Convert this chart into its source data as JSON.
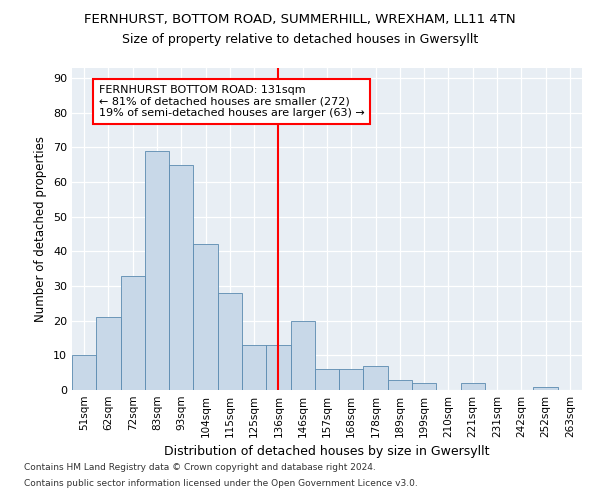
{
  "title1": "FERNHURST, BOTTOM ROAD, SUMMERHILL, WREXHAM, LL11 4TN",
  "title2": "Size of property relative to detached houses in Gwersyllt",
  "xlabel": "Distribution of detached houses by size in Gwersyllt",
  "ylabel": "Number of detached properties",
  "footnote1": "Contains HM Land Registry data © Crown copyright and database right 2024.",
  "footnote2": "Contains public sector information licensed under the Open Government Licence v3.0.",
  "categories": [
    "51sqm",
    "62sqm",
    "72sqm",
    "83sqm",
    "93sqm",
    "104sqm",
    "115sqm",
    "125sqm",
    "136sqm",
    "146sqm",
    "157sqm",
    "168sqm",
    "178sqm",
    "189sqm",
    "199sqm",
    "210sqm",
    "221sqm",
    "231sqm",
    "242sqm",
    "252sqm",
    "263sqm"
  ],
  "values": [
    10,
    21,
    33,
    69,
    65,
    42,
    28,
    13,
    13,
    20,
    6,
    6,
    7,
    3,
    2,
    0,
    2,
    0,
    0,
    1,
    0
  ],
  "bar_color": "#c8d8e8",
  "bar_edge_color": "#5a8ab0",
  "vline_x_index": 8,
  "annotation_title": "FERNHURST BOTTOM ROAD: 131sqm",
  "annotation_line1": "← 81% of detached houses are smaller (272)",
  "annotation_line2": "19% of semi-detached houses are larger (63) →",
  "ylim": [
    0,
    93
  ],
  "yticks": [
    0,
    10,
    20,
    30,
    40,
    50,
    60,
    70,
    80,
    90
  ],
  "bg_color": "#e8eef4"
}
